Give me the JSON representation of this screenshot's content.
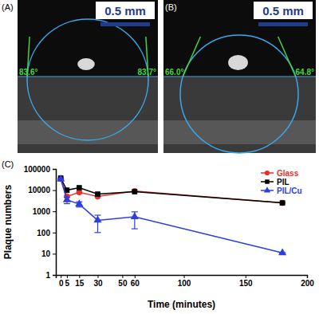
{
  "chart_data": {
    "type": "line",
    "label": "(C)",
    "x_label": "Time (minutes)",
    "y_label": "Plaque numbers",
    "x": [
      0,
      5,
      15,
      30,
      60,
      180
    ],
    "series": [
      {
        "name": "Glass",
        "color": "#e8312b",
        "marker": "circle",
        "values": [
          35000,
          5000,
          8000,
          5000,
          9000,
          2500
        ]
      },
      {
        "name": "PIL",
        "color": "#000000",
        "marker": "square",
        "values": [
          37000,
          10000,
          13000,
          6500,
          8500,
          2500
        ]
      },
      {
        "name": "PIL/Cu",
        "color": "#2b3fe0",
        "marker": "triangle",
        "values": [
          33000,
          3500,
          2200,
          380,
          550,
          11
        ],
        "errors": [
          0,
          1200,
          600,
          280,
          400,
          0
        ]
      }
    ],
    "xlim": [
      -4,
      200
    ],
    "xticks": [
      0,
      5,
      15,
      30,
      50,
      60,
      100,
      150,
      200
    ],
    "ylim": [
      1,
      100000
    ],
    "yticks": [
      1,
      10,
      100,
      1000,
      10000,
      100000
    ],
    "log": "y",
    "grid": false,
    "legend": "upper right"
  },
  "images": [
    {
      "label": "(A)",
      "scale_bar": "0.5 mm",
      "angles": [
        "83.6°",
        "83.7°"
      ]
    },
    {
      "label": "(B)",
      "scale_bar": "0.5 mm",
      "angles": [
        "66.0°",
        "64.8°"
      ]
    }
  ]
}
